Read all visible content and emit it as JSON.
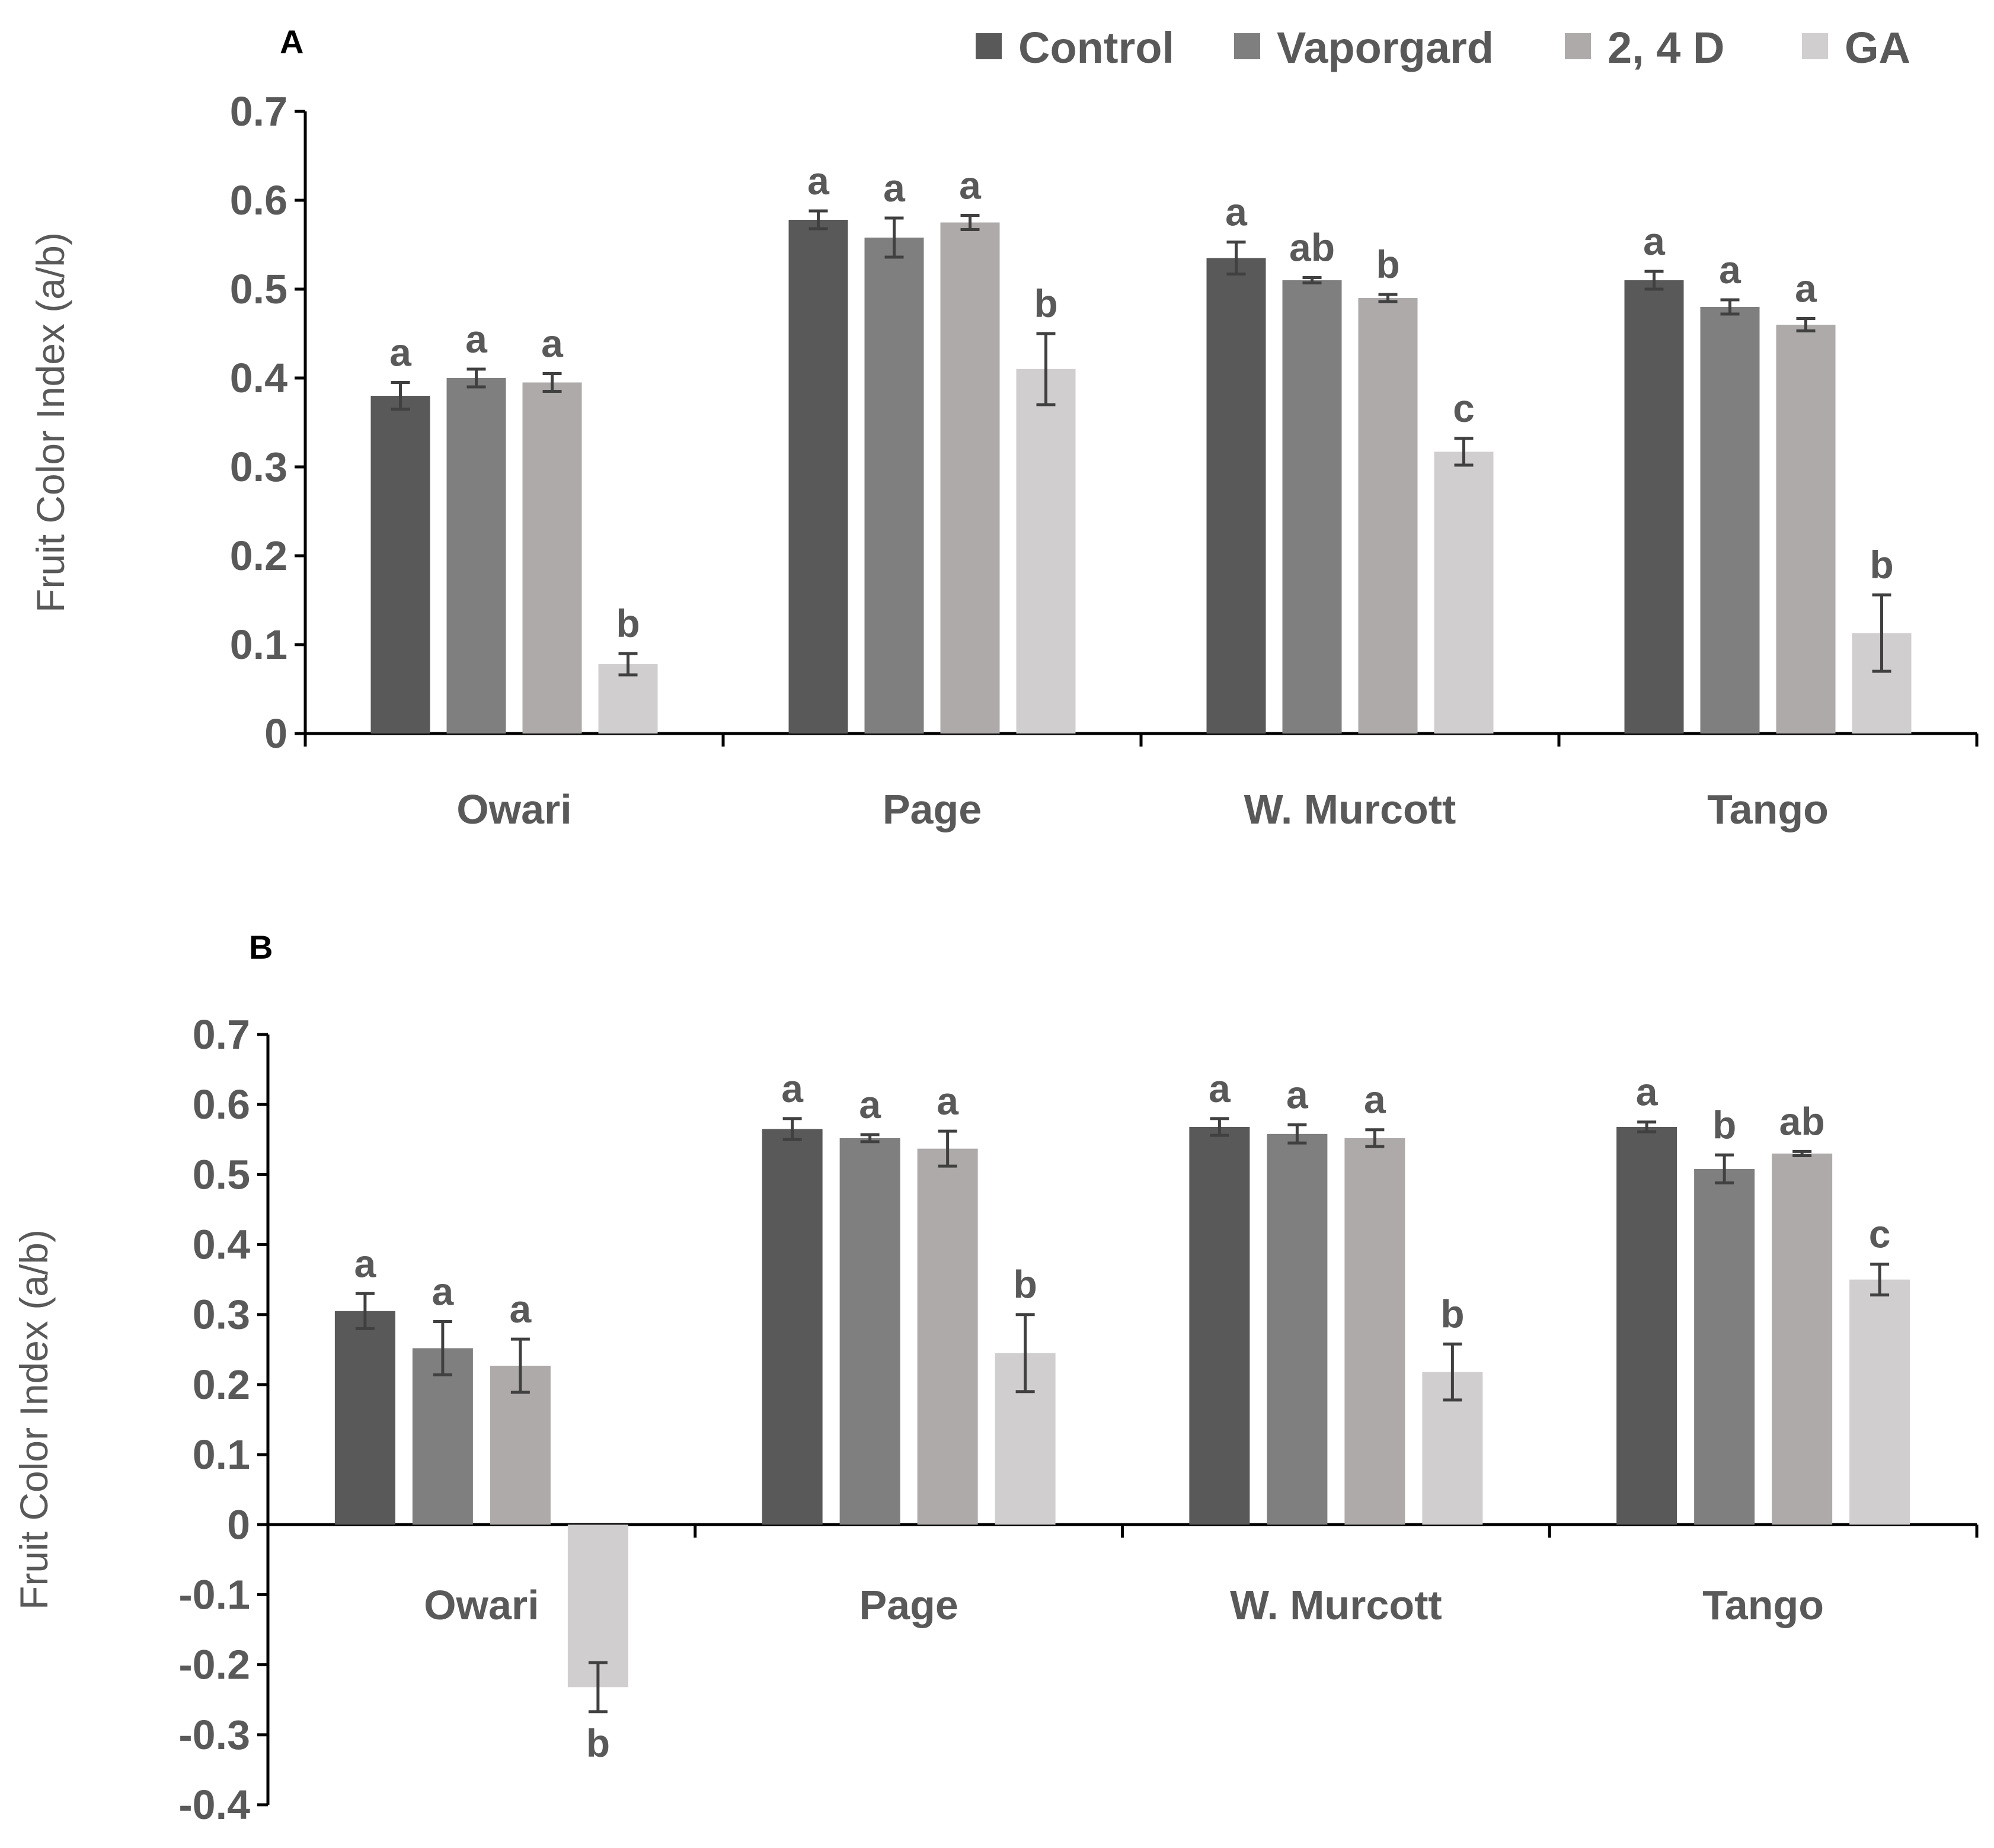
{
  "legend": {
    "items": [
      {
        "label": "Control",
        "color": "#595959"
      },
      {
        "label": "Vaporgard",
        "color": "#7f7f7f"
      },
      {
        "label": "2, 4 D",
        "color": "#aeaaaa"
      },
      {
        "label": "GA",
        "color": "#d0cece"
      }
    ]
  },
  "chart_data": [
    {
      "panel": "A",
      "type": "bar",
      "ylabel": "Fruit Color Index (a/b)",
      "xlabel": "",
      "ylim": [
        0,
        0.7
      ],
      "yticks": [
        0,
        0.1,
        0.2,
        0.3,
        0.4,
        0.5,
        0.6,
        0.7
      ],
      "ytick_labels": [
        "0",
        "0.1",
        "0.2",
        "0.3",
        "0.4",
        "0.5",
        "0.6",
        "0.7"
      ],
      "categories": [
        "Owari",
        "Page",
        "W. Murcott",
        "Tango"
      ],
      "series": [
        {
          "name": "Control",
          "color": "#595959",
          "values": [
            0.38,
            0.578,
            0.535,
            0.51
          ],
          "errors": [
            0.015,
            0.01,
            0.018,
            0.01
          ],
          "letters": [
            "a",
            "a",
            "a",
            "a"
          ]
        },
        {
          "name": "Vaporgard",
          "color": "#7f7f7f",
          "values": [
            0.4,
            0.558,
            0.51,
            0.48
          ],
          "errors": [
            0.01,
            0.022,
            0.003,
            0.008
          ],
          "letters": [
            "a",
            "a",
            "ab",
            "a"
          ]
        },
        {
          "name": "2, 4 D",
          "color": "#aeaaaa",
          "values": [
            0.395,
            0.575,
            0.49,
            0.46
          ],
          "errors": [
            0.01,
            0.008,
            0.004,
            0.007
          ],
          "letters": [
            "a",
            "a",
            "b",
            "a"
          ]
        },
        {
          "name": "GA",
          "color": "#d0cece",
          "values": [
            0.078,
            0.41,
            0.317,
            0.113
          ],
          "errors": [
            0.012,
            0.04,
            0.015,
            0.043
          ],
          "letters": [
            "b",
            "b",
            "c",
            "b"
          ]
        }
      ]
    },
    {
      "panel": "B",
      "type": "bar",
      "ylabel": "Fruit Color Index (a/b)",
      "xlabel": "",
      "ylim": [
        -0.4,
        0.7
      ],
      "yticks": [
        -0.4,
        -0.3,
        -0.2,
        -0.1,
        0,
        0.1,
        0.2,
        0.3,
        0.4,
        0.5,
        0.6,
        0.7
      ],
      "ytick_labels": [
        "-0.4",
        "-0.3",
        "-0.2",
        "-0.1",
        "0",
        "0.1",
        "0.2",
        "0.3",
        "0.4",
        "0.5",
        "0.6",
        "0.7"
      ],
      "categories": [
        "Owari",
        "Page",
        "W. Murcott",
        "Tango"
      ],
      "series": [
        {
          "name": "Control",
          "color": "#595959",
          "values": [
            0.305,
            0.565,
            0.568,
            0.568
          ],
          "errors": [
            0.025,
            0.015,
            0.012,
            0.007
          ],
          "letters": [
            "a",
            "a",
            "a",
            "a"
          ]
        },
        {
          "name": "Vaporgard",
          "color": "#7f7f7f",
          "values": [
            0.252,
            0.552,
            0.558,
            0.508
          ],
          "errors": [
            0.038,
            0.005,
            0.013,
            0.02
          ],
          "letters": [
            "a",
            "a",
            "a",
            "b"
          ]
        },
        {
          "name": "2, 4 D",
          "color": "#aeaaaa",
          "values": [
            0.227,
            0.537,
            0.552,
            0.53
          ],
          "errors": [
            0.038,
            0.025,
            0.012,
            0.003
          ],
          "letters": [
            "a",
            "a",
            "a",
            "ab"
          ]
        },
        {
          "name": "GA",
          "color": "#d0cece",
          "values": [
            -0.232,
            0.245,
            0.218,
            0.35
          ],
          "errors": [
            0.035,
            0.055,
            0.04,
            0.022
          ],
          "letters": [
            "b",
            "b",
            "b",
            "c"
          ]
        }
      ]
    }
  ]
}
